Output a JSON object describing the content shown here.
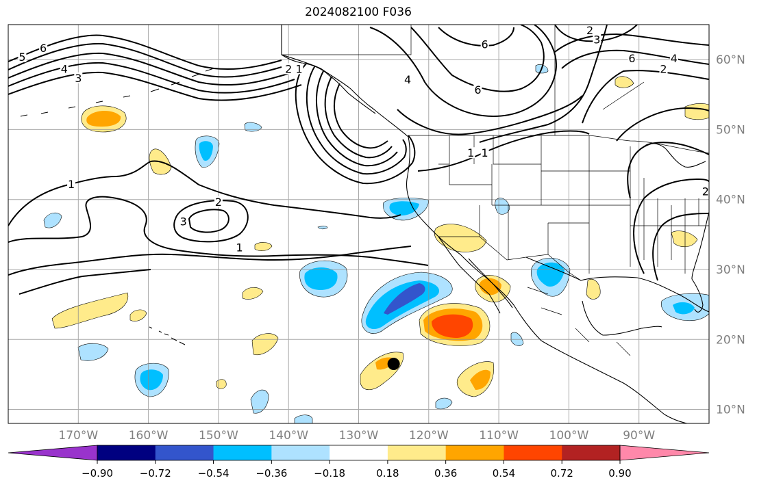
{
  "title": "2024082100 F036",
  "map": {
    "projection": "PlateCarree",
    "lon_range": [
      -180,
      -80
    ],
    "lat_range": [
      8,
      65
    ],
    "lon_ticks": [
      {
        "value": -170,
        "label": "170°W"
      },
      {
        "value": -160,
        "label": "160°W"
      },
      {
        "value": -150,
        "label": "150°W"
      },
      {
        "value": -140,
        "label": "140°W"
      },
      {
        "value": -130,
        "label": "130°W"
      },
      {
        "value": -120,
        "label": "120°W"
      },
      {
        "value": -110,
        "label": "110°W"
      },
      {
        "value": -100,
        "label": "100°W"
      },
      {
        "value": -90,
        "label": "90°W"
      }
    ],
    "lat_ticks": [
      {
        "value": 10,
        "label": "10°N"
      },
      {
        "value": 20,
        "label": "20°N"
      },
      {
        "value": 30,
        "label": "30°N"
      },
      {
        "value": 40,
        "label": "40°N"
      },
      {
        "value": 50,
        "label": "50°N"
      },
      {
        "value": 60,
        "label": "60°N"
      }
    ],
    "gridlines": true,
    "marker": {
      "lon": -125,
      "lat": 16.5,
      "color": "#000000"
    },
    "contour_labels": [
      {
        "text": "5",
        "lon": -178.0,
        "lat": 60.2
      },
      {
        "text": "6",
        "lon": -175.0,
        "lat": 61.5
      },
      {
        "text": "4",
        "lon": -172.0,
        "lat": 58.5
      },
      {
        "text": "3",
        "lon": -170.0,
        "lat": 57.2
      },
      {
        "text": "2",
        "lon": -140.0,
        "lat": 58.5
      },
      {
        "text": "1",
        "lon": -138.5,
        "lat": 58.5
      },
      {
        "text": "4",
        "lon": -123.0,
        "lat": 57.0
      },
      {
        "text": "6",
        "lon": -112.0,
        "lat": 62.0
      },
      {
        "text": "6",
        "lon": -113.0,
        "lat": 55.5
      },
      {
        "text": "1",
        "lon": -114.0,
        "lat": 46.5
      },
      {
        "text": "1",
        "lon": -112.0,
        "lat": 46.5
      },
      {
        "text": "2",
        "lon": -97.0,
        "lat": 64.0
      },
      {
        "text": "3",
        "lon": -96.0,
        "lat": 62.7
      },
      {
        "text": "6",
        "lon": -91.0,
        "lat": 60.0
      },
      {
        "text": "4",
        "lon": -85.0,
        "lat": 60.0
      },
      {
        "text": "2",
        "lon": -86.5,
        "lat": 58.5
      },
      {
        "text": "2",
        "lon": -80.5,
        "lat": 41.0
      },
      {
        "text": "1",
        "lon": -171.0,
        "lat": 42.0
      },
      {
        "text": "2",
        "lon": -150.0,
        "lat": 39.5
      },
      {
        "text": "3",
        "lon": -155.0,
        "lat": 36.7
      },
      {
        "text": "1",
        "lon": -147.0,
        "lat": 33.0
      }
    ]
  },
  "legend": {
    "type": "colorbar",
    "orientation": "horizontal",
    "extend": "both",
    "boundaries": [
      -0.9,
      -0.72,
      -0.54,
      -0.36,
      -0.18,
      0.18,
      0.36,
      0.54,
      0.72,
      0.9
    ],
    "tick_labels": [
      "−0.90",
      "−0.72",
      "−0.54",
      "−0.36",
      "−0.18",
      "0.18",
      "0.36",
      "0.54",
      "0.72",
      "0.90"
    ],
    "colors": [
      "#9933cc",
      "#000080",
      "#3355cc",
      "#00bfff",
      "#aee2ff",
      "#ffffff",
      "#ffeb8b",
      "#ffa500",
      "#ff4500",
      "#b22222",
      "#ff88aa"
    ]
  }
}
